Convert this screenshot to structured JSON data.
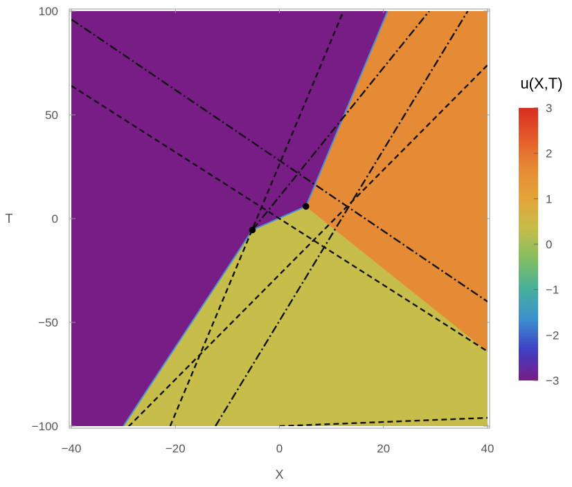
{
  "chart_data": {
    "type": "heatmap",
    "title": "",
    "xlabel": "X",
    "ylabel": "T",
    "xlim": [
      -40,
      40
    ],
    "ylim": [
      -100,
      100
    ],
    "xticks": [
      -40,
      -20,
      0,
      20,
      40
    ],
    "yticks": [
      -100,
      -50,
      0,
      50,
      100
    ],
    "xtick_labels": [
      "−40",
      "−20",
      "0",
      "20",
      "40"
    ],
    "ytick_labels": [
      "−100",
      "−50",
      "0",
      "50",
      "100"
    ],
    "regions": [
      {
        "value": -3,
        "color": "#781c86",
        "polygon": [
          [
            -40,
            -100
          ],
          [
            -30,
            -100
          ],
          [
            -5.2,
            -5.5
          ],
          [
            5.1,
            5.9
          ],
          [
            20.8,
            100
          ],
          [
            -40,
            100
          ]
        ]
      },
      {
        "value": 1,
        "color": "#c6bd4a",
        "polygon": [
          [
            -30,
            -100
          ],
          [
            40,
            -100
          ],
          [
            40,
            -64
          ],
          [
            5.1,
            5.9
          ],
          [
            -5.2,
            -5.5
          ]
        ]
      },
      {
        "value": 2,
        "color": "#e68b35",
        "polygon": [
          [
            5.1,
            5.9
          ],
          [
            40,
            -64
          ],
          [
            40,
            100
          ],
          [
            20.8,
            100
          ]
        ]
      }
    ],
    "lines": [
      {
        "style": "dashed",
        "points": [
          [
            -40,
            64
          ],
          [
            40,
            -64
          ]
        ]
      },
      {
        "style": "dashed",
        "points": [
          [
            -40,
            -128
          ],
          [
            40,
            74
          ]
        ]
      },
      {
        "style": "dashed",
        "points": [
          [
            -21,
            -100
          ],
          [
            12.3,
            100
          ]
        ]
      },
      {
        "style": "dashed",
        "points": [
          [
            0,
            -100
          ],
          [
            40,
            -96
          ]
        ]
      },
      {
        "style": "dashdot",
        "points": [
          [
            -40,
            96
          ],
          [
            40,
            -40
          ]
        ]
      },
      {
        "style": "dashdot",
        "points": [
          [
            -12.3,
            -100
          ],
          [
            36.2,
            100
          ]
        ]
      },
      {
        "style": "dashdot",
        "points": [
          [
            -5.2,
            -5.5
          ],
          [
            28.8,
            100
          ]
        ]
      }
    ],
    "points": [
      {
        "x": -5.2,
        "y": -5.5
      },
      {
        "x": 5.1,
        "y": 5.9
      }
    ],
    "legend": {
      "title": "u(X,T)",
      "placement": "right",
      "min": -3,
      "max": 3,
      "ticks": [
        3,
        2,
        1,
        0,
        -1,
        -2,
        -3
      ],
      "tick_labels": [
        "3",
        "2",
        "1",
        "0",
        "−1",
        "−2",
        "−3"
      ],
      "stops": [
        "#781c86",
        "#3f3fc3",
        "#3b8fd1",
        "#46b09c",
        "#82bd62",
        "#c6bd4a",
        "#e3a43a",
        "#e68b35",
        "#e45a2a",
        "#d92e22"
      ]
    },
    "grid": false
  }
}
